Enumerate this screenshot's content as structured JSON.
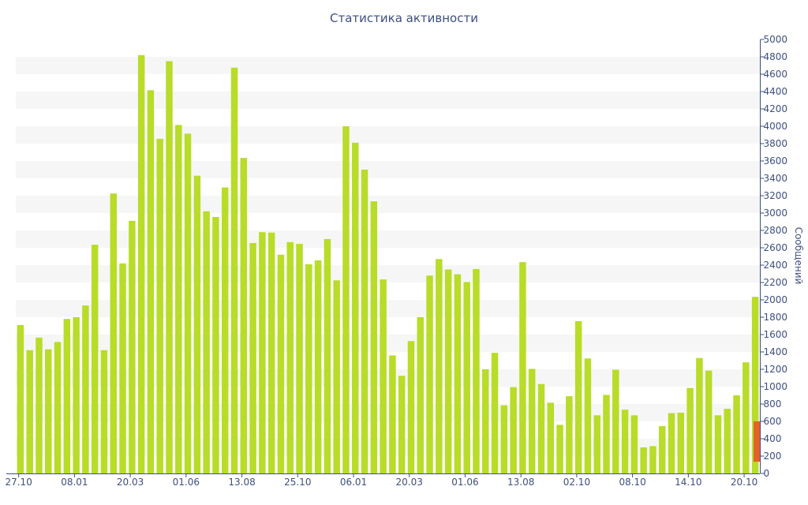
{
  "chart_data": {
    "type": "bar",
    "title": "Статистика активности",
    "ylabel": "Сообщений",
    "ylim": [
      0,
      5000
    ],
    "y_ticks": [
      0,
      200,
      400,
      600,
      800,
      1000,
      1200,
      1400,
      1600,
      1800,
      2000,
      2200,
      2400,
      2600,
      2800,
      3000,
      3200,
      3400,
      3600,
      3800,
      4000,
      4200,
      4400,
      4600,
      4800,
      5000
    ],
    "x_tick_labels": [
      "27.10",
      "08.01",
      "20.03",
      "01.06",
      "13.08",
      "25.10",
      "06.01",
      "20.03",
      "01.06",
      "13.08",
      "02.10",
      "08.10",
      "14.10",
      "20.10"
    ],
    "x_tick_positions": [
      0,
      6,
      12,
      18,
      24,
      30,
      36,
      42,
      48,
      54,
      60,
      66,
      72,
      78
    ],
    "y_axis_position": "right",
    "grid": "horizontal alternating bands",
    "colors": {
      "bar": "#b8dc28",
      "highlight": "#e2622a",
      "axis": "#3d4f80",
      "band": "#f6f6f6"
    },
    "values": [
      1710,
      1420,
      1565,
      1430,
      1515,
      1780,
      1800,
      1935,
      2635,
      1420,
      3225,
      2420,
      2910,
      4820,
      4415,
      3855,
      4750,
      4015,
      3915,
      3430,
      3020,
      2955,
      3295,
      4675,
      3635,
      2655,
      2780,
      2775,
      2520,
      2665,
      2645,
      2410,
      2455,
      2700,
      2225,
      4000,
      3810,
      3500,
      3135,
      2235,
      1360,
      1125,
      1525,
      1800,
      2280,
      2470,
      2350,
      2295,
      2205,
      2355,
      1200,
      1390,
      785,
      995,
      2435,
      1205,
      1030,
      815,
      560,
      890,
      1755,
      1325,
      670,
      905,
      1195,
      735,
      670,
      300,
      315,
      545,
      695,
      700,
      985,
      1330,
      1185,
      670,
      745,
      900,
      1280,
      2035
    ],
    "highlight_bar": {
      "value_from": 135,
      "value_to": 600
    }
  }
}
